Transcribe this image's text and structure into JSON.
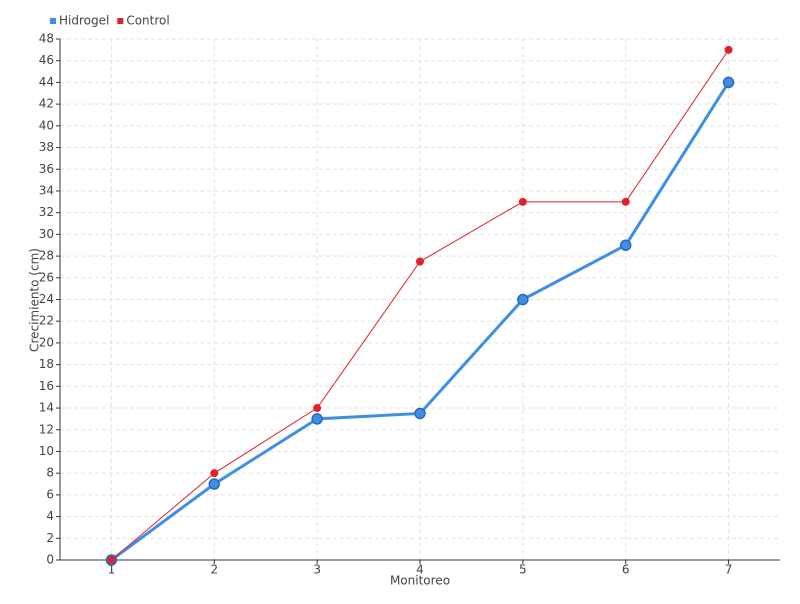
{
  "chart_data": {
    "type": "line",
    "x_label": "Monitoreo",
    "y_label": "Crecimiento (cm)",
    "x": [
      1,
      2,
      3,
      4,
      5,
      6,
      7
    ],
    "xlim": [
      0.5,
      7.5
    ],
    "xticks": [
      1,
      2,
      3,
      4,
      5,
      6,
      7
    ],
    "ylim": [
      0,
      48
    ],
    "yticks": [
      0,
      2,
      4,
      6,
      8,
      10,
      12,
      14,
      16,
      18,
      20,
      22,
      24,
      26,
      28,
      30,
      32,
      34,
      36,
      38,
      40,
      42,
      44,
      46,
      48
    ],
    "grid": true,
    "legend": "top-left",
    "series": [
      {
        "name": "Hidrogel",
        "color": "#3d8fe6",
        "values": [
          0,
          7,
          13,
          13.5,
          24,
          29,
          44
        ]
      },
      {
        "name": "Control",
        "color": "#e0202a",
        "values": [
          0,
          8,
          14,
          27.5,
          33,
          33,
          47
        ]
      }
    ]
  }
}
